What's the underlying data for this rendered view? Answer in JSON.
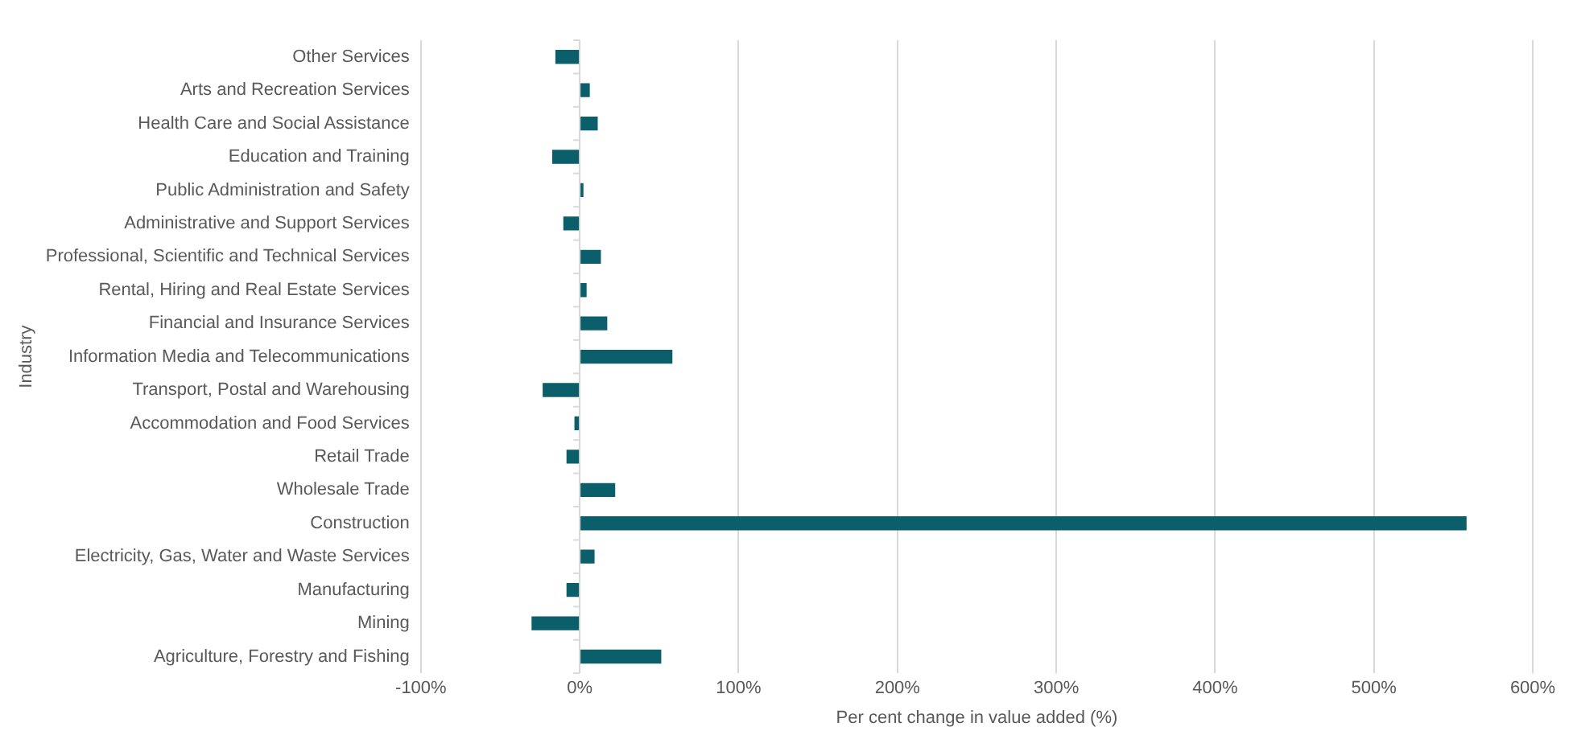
{
  "chart_data": {
    "type": "bar",
    "orientation": "horizontal",
    "xlabel": "Per cent change in value added (%)",
    "ylabel": "Industry",
    "categories": [
      "Other Services",
      "Arts and Recreation Services",
      "Health Care and Social Assistance",
      "Education and Training",
      "Public Administration and Safety",
      "Administrative and Support Services",
      "Professional, Scientific and Technical Services",
      "Rental, Hiring and Real Estate Services",
      "Financial and Insurance Services",
      "Information Media and Telecommunications",
      "Transport, Postal and Warehousing",
      "Accommodation and Food Services",
      "Retail Trade",
      "Wholesale Trade",
      "Construction",
      "Electricity, Gas, Water and Waste Services",
      "Manufacturing",
      "Mining",
      "Agriculture, Forestry and Fishing"
    ],
    "values": [
      -15,
      6,
      11,
      -17,
      2,
      -10,
      13,
      4,
      17,
      58,
      -23,
      -3,
      -8,
      22,
      558,
      9,
      -8,
      -30,
      51
    ],
    "color": "#0b5f6b",
    "xlim": [
      -100,
      600
    ],
    "xticks": [
      {
        "value": -100,
        "label": "-100%"
      },
      {
        "value": 0,
        "label": "0%"
      },
      {
        "value": 100,
        "label": "100%"
      },
      {
        "value": 200,
        "label": "200%"
      },
      {
        "value": 300,
        "label": "300%"
      },
      {
        "value": 400,
        "label": "400%"
      },
      {
        "value": 500,
        "label": "500%"
      },
      {
        "value": 600,
        "label": "600%"
      }
    ],
    "grid": "x",
    "legend": false
  }
}
